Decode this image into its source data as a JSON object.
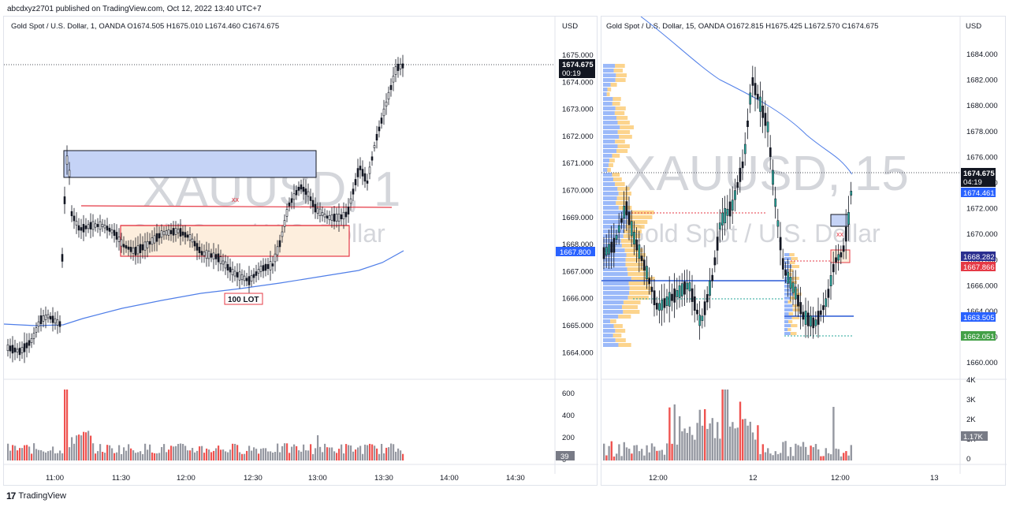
{
  "header": {
    "published": "abcdxyz2701 published on TradingView.com, Oct 12, 2022 13:40 UTC+7"
  },
  "footer": {
    "logo": "17",
    "brand": "TradingView"
  },
  "left": {
    "ohlc": "Gold Spot / U.S. Dollar, 1, OANDA  O1674.505  H1675.010  L1674.460  C1674.675",
    "currency": "USD",
    "watermark_symbol": "XAUUSD, 1",
    "watermark_name": "Gold Spot / U.S. Dollar",
    "price_ticks": [
      "1675.000",
      "1674.000",
      "1673.000",
      "1672.000",
      "1671.000",
      "1670.000",
      "1669.000",
      "1668.000",
      "1667.000",
      "1666.000",
      "1665.000",
      "1664.000"
    ],
    "last_price": "1674.675",
    "countdown": "00:19",
    "ma_price": "1667.800",
    "volume_ticks": [
      "600",
      "400",
      "200",
      "0"
    ],
    "volume_label": "39",
    "time_ticks": [
      "11:00",
      "11:30",
      "12:00",
      "12:30",
      "13:00",
      "13:30",
      "14:00",
      "14:30"
    ],
    "annotation_xx": "xx",
    "annotation_lot": "100 LOT"
  },
  "right": {
    "ohlc": "Gold Spot / U.S. Dollar, 15, OANDA  O1672.815  H1675.425  L1672.570  C1674.675",
    "currency": "USD",
    "watermark_symbol": "XAUUSD, 15",
    "watermark_name": "Gold Spot / U.S. Dollar",
    "price_ticks": [
      "1684.000",
      "1682.000",
      "1680.000",
      "1678.000",
      "1676.000",
      "1674.000",
      "1672.000",
      "1670.000",
      "1668.000",
      "1666.000",
      "1664.000",
      "1662.000",
      "1660.000"
    ],
    "last_price": "1674.675",
    "countdown": "04:19",
    "labels": {
      "ma_blue": "1674.461",
      "red_level": "1668.282",
      "pink_level": "1667.866",
      "blue_level": "1663.505",
      "green_level": "1662.051"
    },
    "volume_ticks": [
      "4K",
      "3K",
      "2K",
      "1K",
      "0"
    ],
    "volume_label": "1.17K",
    "time_ticks": [
      "12:00",
      "12",
      "12:00",
      "13"
    ],
    "annotation_xx": "xx"
  },
  "colors": {
    "up": "#26a69a",
    "down": "#ef5350",
    "candle": "#131722",
    "ma": "#2962ff",
    "zone_blue": "#c5d3f6",
    "zone_orange": "#fde9d0",
    "red_line": "#e53945"
  }
}
